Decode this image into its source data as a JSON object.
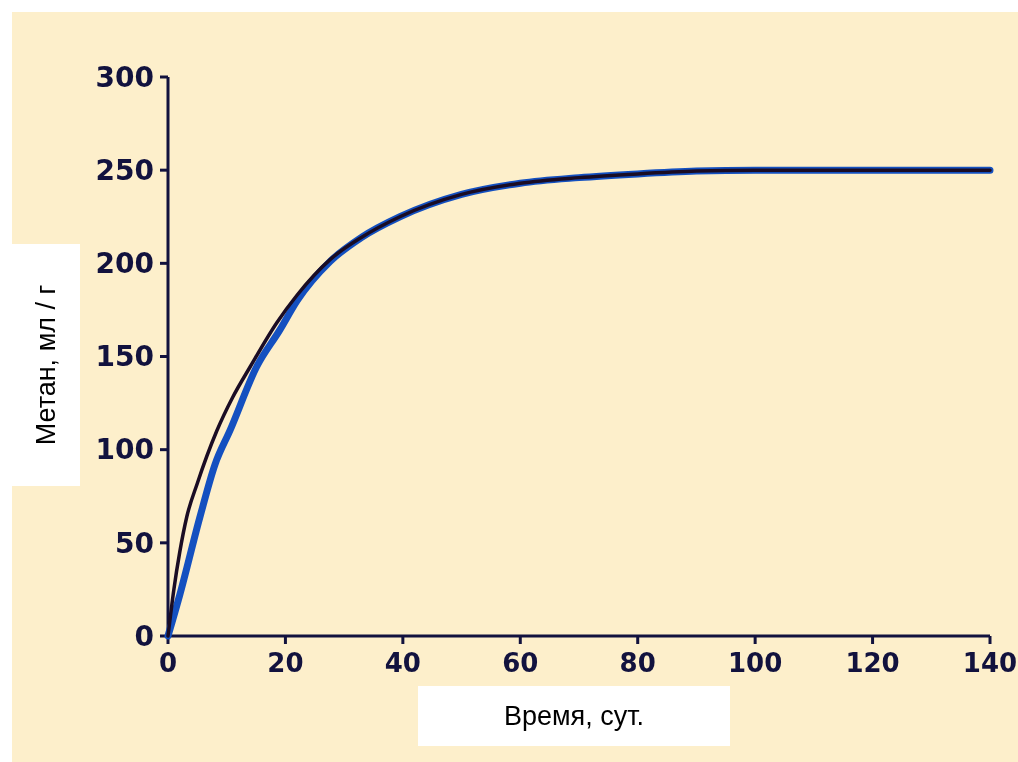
{
  "chart_data": {
    "type": "line",
    "xlabel": "Время, сут.",
    "ylabel": "Метан, мл / г",
    "xlim": [
      0,
      140
    ],
    "xticks": [
      0,
      20,
      40,
      60,
      80,
      100,
      120,
      140
    ],
    "ylim": [
      0,
      300
    ],
    "yticks": [
      0,
      50,
      100,
      150,
      200,
      250,
      300
    ],
    "grid": false,
    "marker": "none",
    "line_style": "solid",
    "series": [
      {
        "color": "#1450c0",
        "x": [
          0,
          2,
          5.45,
          8,
          10.6,
          15.1,
          19,
          22,
          27.6,
          33,
          39.5,
          50,
          60,
          70,
          80,
          90,
          100,
          120,
          140
        ],
        "values": [
          0,
          22,
          64,
          92,
          110.6,
          144.5,
          164,
          180,
          201,
          214,
          225,
          237,
          243,
          246,
          248,
          249.5,
          250,
          250,
          250
        ]
      },
      {
        "color": "#1a0c24",
        "x": [
          0,
          1,
          2,
          3.2,
          5,
          8.3,
          11,
          14,
          18.5,
          22,
          27.6,
          33,
          39.5,
          50,
          60,
          70,
          80,
          90,
          100,
          120,
          140
        ],
        "values": [
          0,
          25,
          45,
          64,
          82,
          110,
          128,
          144.5,
          168,
          183,
          202,
          214,
          225,
          237,
          243,
          246,
          248,
          249.5,
          250,
          250,
          250
        ]
      }
    ]
  }
}
